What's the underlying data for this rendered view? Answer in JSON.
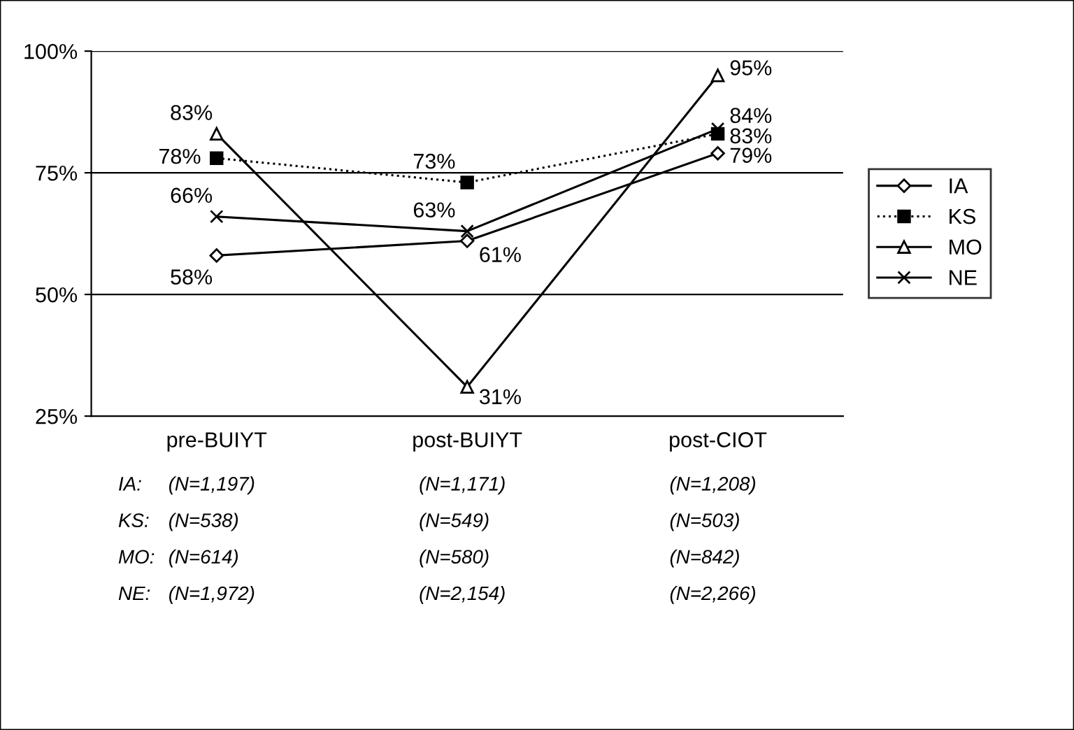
{
  "chart_data": {
    "type": "line",
    "categories": [
      "pre-BUIYT",
      "post-BUIYT",
      "post-CIOT"
    ],
    "series": [
      {
        "name": "IA",
        "color": "#000000",
        "marker": "diamond",
        "line_style": "solid",
        "values": [
          58,
          61,
          79
        ],
        "value_labels": [
          "58%",
          "61%",
          "79%"
        ]
      },
      {
        "name": "KS",
        "color": "#000000",
        "marker": "square",
        "line_style": "dotted",
        "values": [
          78,
          73,
          83
        ],
        "value_labels": [
          "78%",
          "73%",
          "83%"
        ]
      },
      {
        "name": "MO",
        "color": "#000000",
        "marker": "triangle",
        "line_style": "solid",
        "values": [
          83,
          31,
          95
        ],
        "value_labels": [
          "83%",
          "31%",
          "95%"
        ]
      },
      {
        "name": "NE",
        "color": "#000000",
        "marker": "cross",
        "line_style": "solid",
        "values": [
          66,
          63,
          84
        ],
        "value_labels": [
          "66%",
          "63%",
          "84%"
        ]
      }
    ],
    "ylim": [
      25,
      100
    ],
    "yticks": [
      {
        "value": 25,
        "label": "25%"
      },
      {
        "value": 50,
        "label": "50%"
      },
      {
        "value": 75,
        "label": "75%"
      },
      {
        "value": 100,
        "label": "100%"
      }
    ],
    "grid": "y",
    "legend": "right",
    "annotations": [
      "IA:",
      "(N=1,197)",
      "(N=1,171)",
      "(N=1,208)",
      "KS:",
      "(N=538)",
      "(N=549)",
      "(N=503)",
      "MO:",
      "(N=614)",
      "(N=580)",
      "(N=842)",
      "NE:",
      "(N=1,972)",
      "(N=2,154)",
      "(N=2,266)"
    ]
  }
}
